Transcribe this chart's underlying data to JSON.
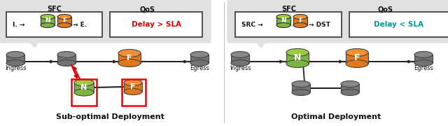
{
  "bg_color": "#ffffff",
  "panel_bg": "#e0e0e0",
  "left_title": "Sub-optimal Deployment",
  "right_title": "Optimal Deployment",
  "left_sfc_label": "SFC",
  "right_sfc_label": "SFC",
  "left_qos_label": "QoS",
  "right_qos_label": "QoS",
  "left_qos_text": "Delay > SLA",
  "right_qos_text": "Delay < SLA",
  "left_qos_color": "#dd0000",
  "right_qos_color": "#009999",
  "node_gray": "#737373",
  "node_gray_top": "#888888",
  "node_green": "#7cb342",
  "node_green_top": "#9ccc40",
  "node_orange": "#e07820",
  "node_orange_top": "#f09030",
  "red_box": "#ee0000",
  "arrow_dark": "#222222",
  "red_arrow": "#dd0000",
  "line_dark": "#222222",
  "divider": "#bbbbbb"
}
